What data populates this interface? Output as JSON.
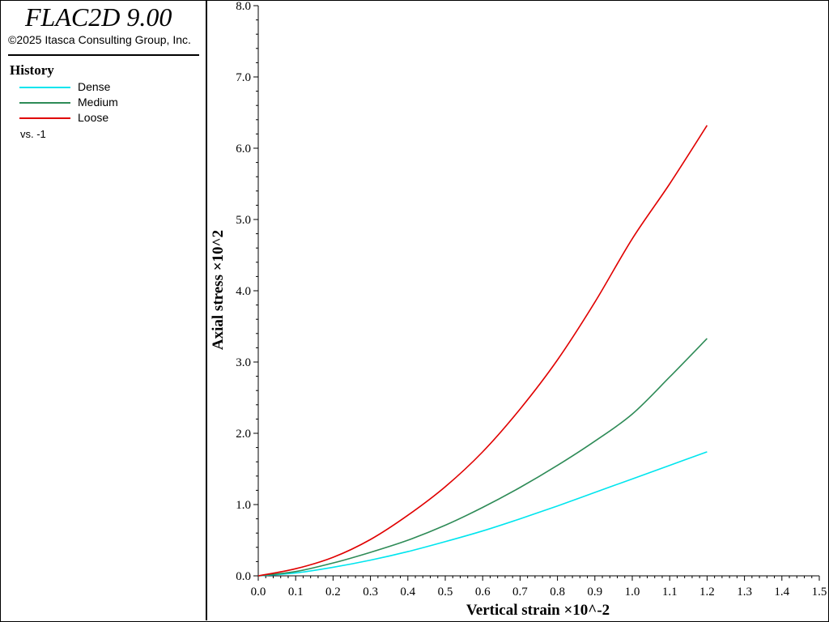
{
  "app": {
    "title": "FLAC2D 9.00",
    "copyright": "©2025 Itasca Consulting Group, Inc."
  },
  "legend": {
    "heading": "History",
    "items": [
      {
        "label": "Dense",
        "color": "#00e5ee"
      },
      {
        "label": "Medium",
        "color": "#2e8b57"
      },
      {
        "label": "Loose",
        "color": "#e00000"
      }
    ],
    "vs_label": "vs. -1"
  },
  "chart_data": {
    "type": "line",
    "xlabel": "Vertical strain ×10^-2",
    "ylabel": "Axial stress ×10^2",
    "xlim": [
      0.0,
      1.5
    ],
    "ylim": [
      0.0,
      8.0
    ],
    "x_ticks": [
      "0.0",
      "0.1",
      "0.2",
      "0.3",
      "0.4",
      "0.5",
      "0.6",
      "0.7",
      "0.8",
      "0.9",
      "1.0",
      "1.1",
      "1.2",
      "1.3",
      "1.4",
      "1.5"
    ],
    "y_ticks": [
      "0.0",
      "1.0",
      "2.0",
      "3.0",
      "4.0",
      "5.0",
      "6.0",
      "7.0",
      "8.0"
    ],
    "grid": false,
    "series": [
      {
        "name": "Dense",
        "color": "#00e5ee",
        "x": [
          0.0,
          0.1,
          0.2,
          0.3,
          0.4,
          0.5,
          0.6,
          0.7,
          0.8,
          0.9,
          1.0,
          1.1,
          1.2
        ],
        "y": [
          0.0,
          0.04,
          0.12,
          0.22,
          0.34,
          0.48,
          0.63,
          0.8,
          0.98,
          1.17,
          1.36,
          1.55,
          1.74
        ]
      },
      {
        "name": "Medium",
        "color": "#2e8b57",
        "x": [
          0.0,
          0.1,
          0.2,
          0.3,
          0.4,
          0.5,
          0.6,
          0.7,
          0.8,
          0.9,
          1.0,
          1.1,
          1.2
        ],
        "y": [
          0.0,
          0.06,
          0.18,
          0.33,
          0.5,
          0.71,
          0.96,
          1.24,
          1.55,
          1.89,
          2.27,
          2.79,
          3.33
        ]
      },
      {
        "name": "Loose",
        "color": "#e00000",
        "x": [
          0.0,
          0.1,
          0.2,
          0.3,
          0.4,
          0.5,
          0.6,
          0.7,
          0.8,
          0.9,
          1.0,
          1.1,
          1.2
        ],
        "y": [
          0.0,
          0.1,
          0.26,
          0.51,
          0.85,
          1.25,
          1.74,
          2.34,
          3.03,
          3.84,
          4.73,
          5.5,
          6.32
        ]
      }
    ]
  }
}
